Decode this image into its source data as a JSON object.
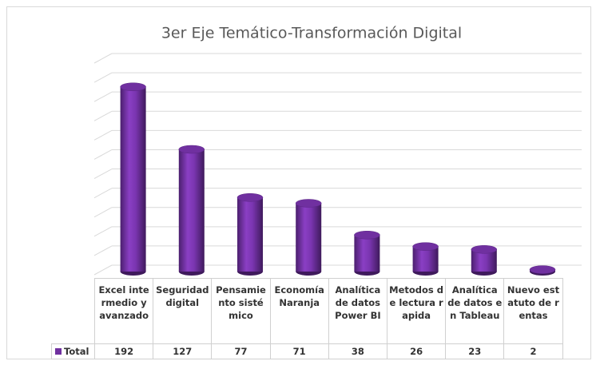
{
  "chart_data": {
    "type": "bar",
    "title": "3er Eje Temático-Transformación Digital",
    "categories": [
      "Excel intermedio y avanzado",
      "Seguridad digital",
      "Pensamiento sistémico",
      "Economía Naranja",
      "Analítica de datos Power BI",
      "Metodos de lectura rapida",
      "Analítica de datos en Tableau",
      "Nuevo estatuto de rentas"
    ],
    "series": [
      {
        "name": "Total",
        "color": "#7030a0",
        "values": [
          192,
          127,
          77,
          71,
          38,
          26,
          23,
          2
        ]
      }
    ],
    "ylim": [
      0,
      220
    ],
    "yticks": [
      0,
      20,
      40,
      60,
      80,
      100,
      120,
      140,
      160,
      180,
      200,
      220
    ],
    "grid": true
  }
}
